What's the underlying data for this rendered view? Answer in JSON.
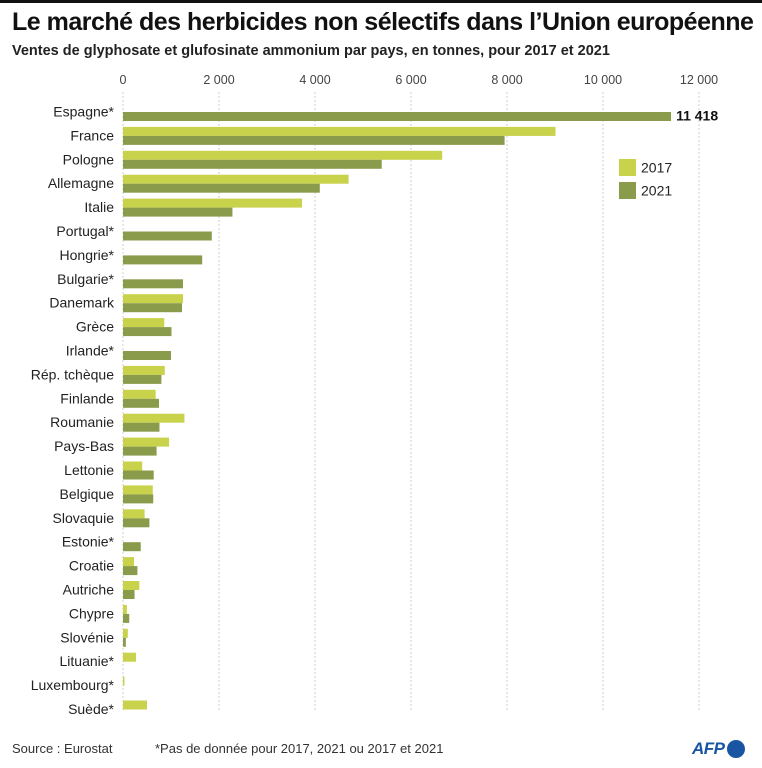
{
  "header": {
    "title": "Le marché des herbicides non sélectifs dans l’Union européenne",
    "subtitle": "Ventes de glyphosate et glufosinate ammonium par pays, en tonnes, pour 2017 et 2021"
  },
  "footer": {
    "source": "Source : Eurostat",
    "note": "*Pas de donnée pour 2017, 2021 ou 2017 et 2021",
    "logo_text": "AFP"
  },
  "colors": {
    "s2017": "#c8d24a",
    "s2021": "#8a9c4c",
    "grid": "#cfcfcf",
    "text": "#222222"
  },
  "chart_data": {
    "type": "bar",
    "orientation": "horizontal",
    "categories": [
      "Espagne*",
      "France",
      "Pologne",
      "Allemagne",
      "Italie",
      "Portugal*",
      "Hongrie*",
      "Bulgarie*",
      "Danemark",
      "Grèce",
      "Irlande*",
      "Rép. tchèque",
      "Finlande",
      "Roumanie",
      "Pays-Bas",
      "Lettonie",
      "Belgique",
      "Slovaquie",
      "Estonie*",
      "Croatie",
      "Autriche",
      "Chypre",
      "Slovénie",
      "Lituanie*",
      "Luxembourg*",
      "Suède*"
    ],
    "series": [
      {
        "name": "2017",
        "values": [
          null,
          9010,
          6650,
          4700,
          3730,
          null,
          null,
          null,
          1250,
          860,
          null,
          870,
          680,
          1280,
          960,
          400,
          620,
          450,
          null,
          230,
          340,
          80,
          100,
          270,
          20,
          500
        ]
      },
      {
        "name": "2021",
        "values": [
          11418,
          7950,
          5390,
          4100,
          2280,
          1850,
          1650,
          1250,
          1230,
          1010,
          1000,
          800,
          750,
          760,
          700,
          640,
          630,
          550,
          370,
          300,
          240,
          130,
          60,
          null,
          null,
          null
        ]
      }
    ],
    "xlim": [
      0,
      12000
    ],
    "xticks": [
      0,
      2000,
      4000,
      6000,
      8000,
      10000,
      12000
    ],
    "xtick_labels": [
      "0",
      "2 000",
      "4 000",
      "6 000",
      "8 000",
      "10 000",
      "12 000"
    ],
    "value_label": {
      "category": "Espagne*",
      "series": "2021",
      "text": "11 418"
    },
    "grid": true,
    "legend_position": "right"
  }
}
